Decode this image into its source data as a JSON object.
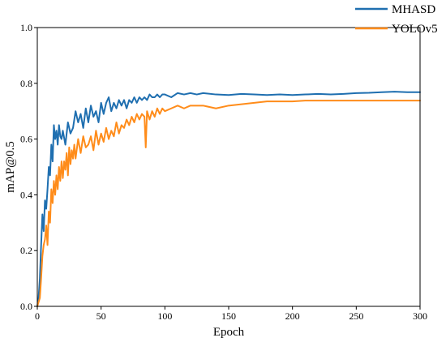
{
  "chart_data": {
    "type": "line",
    "title": "",
    "xlabel": "Epoch",
    "ylabel": "mAP@0.5",
    "xlim": [
      0,
      300
    ],
    "ylim": [
      0.0,
      1.0
    ],
    "x_ticks": [
      "0",
      "50",
      "100",
      "150",
      "200",
      "250",
      "300"
    ],
    "y_ticks": [
      "0.0",
      "0.2",
      "0.4",
      "0.6",
      "0.8",
      "1.0"
    ],
    "grid": false,
    "legend_position": "top-right",
    "series": [
      {
        "name": "MHASD",
        "color": "#1f6fb0",
        "x": [
          0,
          1,
          2,
          3,
          4,
          5,
          6,
          7,
          8,
          9,
          10,
          11,
          12,
          13,
          14,
          15,
          16,
          17,
          18,
          19,
          20,
          22,
          24,
          26,
          28,
          30,
          32,
          34,
          36,
          38,
          40,
          42,
          44,
          46,
          48,
          50,
          52,
          54,
          56,
          58,
          60,
          62,
          64,
          66,
          68,
          70,
          72,
          74,
          76,
          78,
          80,
          82,
          84,
          86,
          88,
          90,
          92,
          94,
          96,
          98,
          100,
          105,
          110,
          115,
          120,
          125,
          130,
          140,
          150,
          160,
          170,
          180,
          190,
          200,
          210,
          220,
          230,
          240,
          250,
          260,
          270,
          280,
          290,
          300
        ],
        "y": [
          0.0,
          0.03,
          0.1,
          0.22,
          0.33,
          0.27,
          0.38,
          0.35,
          0.42,
          0.5,
          0.47,
          0.58,
          0.52,
          0.65,
          0.6,
          0.63,
          0.58,
          0.65,
          0.61,
          0.6,
          0.63,
          0.58,
          0.66,
          0.62,
          0.64,
          0.7,
          0.66,
          0.69,
          0.64,
          0.71,
          0.66,
          0.72,
          0.68,
          0.7,
          0.66,
          0.73,
          0.69,
          0.73,
          0.75,
          0.7,
          0.73,
          0.71,
          0.74,
          0.72,
          0.74,
          0.71,
          0.74,
          0.73,
          0.75,
          0.73,
          0.75,
          0.74,
          0.75,
          0.74,
          0.76,
          0.75,
          0.75,
          0.76,
          0.75,
          0.76,
          0.76,
          0.75,
          0.765,
          0.76,
          0.765,
          0.76,
          0.765,
          0.76,
          0.758,
          0.762,
          0.76,
          0.758,
          0.76,
          0.758,
          0.76,
          0.762,
          0.76,
          0.762,
          0.765,
          0.766,
          0.768,
          0.77,
          0.768,
          0.768
        ]
      },
      {
        "name": "YOLOv5",
        "color": "#ff8c1a",
        "x": [
          0,
          2,
          3,
          4,
          5,
          6,
          7,
          8,
          9,
          10,
          11,
          12,
          13,
          14,
          15,
          16,
          17,
          18,
          19,
          20,
          21,
          22,
          23,
          24,
          25,
          26,
          27,
          28,
          29,
          30,
          32,
          34,
          36,
          38,
          40,
          42,
          44,
          46,
          48,
          50,
          52,
          54,
          56,
          58,
          60,
          62,
          64,
          66,
          68,
          70,
          72,
          74,
          76,
          78,
          80,
          82,
          84,
          85,
          86,
          88,
          90,
          92,
          94,
          96,
          98,
          100,
          105,
          110,
          115,
          120,
          125,
          130,
          140,
          150,
          160,
          170,
          180,
          190,
          200,
          210,
          220,
          230,
          240,
          250,
          260,
          270,
          280,
          290,
          300
        ],
        "y": [
          0.0,
          0.03,
          0.1,
          0.18,
          0.22,
          0.24,
          0.29,
          0.22,
          0.34,
          0.3,
          0.42,
          0.37,
          0.45,
          0.4,
          0.47,
          0.42,
          0.5,
          0.45,
          0.52,
          0.46,
          0.52,
          0.49,
          0.55,
          0.47,
          0.57,
          0.51,
          0.56,
          0.53,
          0.58,
          0.53,
          0.6,
          0.55,
          0.61,
          0.57,
          0.58,
          0.61,
          0.56,
          0.63,
          0.58,
          0.62,
          0.59,
          0.64,
          0.6,
          0.63,
          0.61,
          0.66,
          0.62,
          0.65,
          0.64,
          0.67,
          0.65,
          0.68,
          0.66,
          0.69,
          0.67,
          0.69,
          0.68,
          0.57,
          0.7,
          0.67,
          0.7,
          0.68,
          0.71,
          0.69,
          0.71,
          0.7,
          0.71,
          0.72,
          0.71,
          0.72,
          0.72,
          0.72,
          0.71,
          0.72,
          0.725,
          0.73,
          0.735,
          0.735,
          0.735,
          0.738,
          0.738,
          0.738,
          0.738,
          0.738,
          0.738,
          0.738,
          0.738,
          0.738,
          0.738
        ]
      }
    ]
  }
}
